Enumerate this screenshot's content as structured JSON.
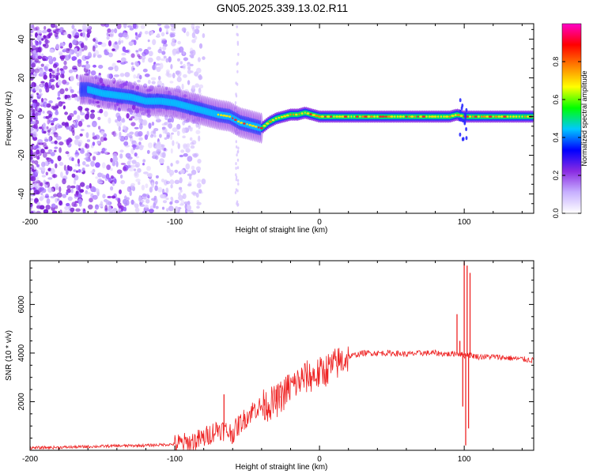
{
  "chart_data": [
    {
      "type": "heatmap",
      "title": "GN05.2025.339.13.02.R11",
      "xlabel": "Height of straight line (km)",
      "ylabel": "Frequency (Hz)",
      "xlim": [
        -200,
        148
      ],
      "ylim": [
        -50,
        48
      ],
      "xticks": [
        -200,
        -100,
        0,
        100
      ],
      "yticks": [
        -40,
        -20,
        0,
        20,
        40
      ],
      "xtick_labels": [
        "-200",
        "-100",
        "0",
        "100"
      ],
      "ytick_labels": [
        "-40",
        "-20",
        "0",
        "20",
        "40"
      ],
      "ridge": {
        "height_km": [
          -160,
          -150,
          -140,
          -130,
          -120,
          -110,
          -100,
          -90,
          -80,
          -70,
          -62,
          -55,
          -50,
          -45,
          -40,
          -35,
          -30,
          -25,
          -20,
          -15,
          -10,
          -5,
          0,
          10,
          50,
          90,
          95,
          100,
          110,
          148
        ],
        "frequency_hz": [
          14,
          12,
          11,
          10,
          8,
          8,
          7,
          5,
          3,
          1,
          0,
          -3,
          -4,
          -5,
          -6,
          -3,
          -1,
          0,
          1,
          1,
          2,
          1,
          0,
          0,
          0,
          0,
          1,
          0,
          0,
          0
        ]
      },
      "colorbar": {
        "label": "Normalized spectral amplitude",
        "range": [
          0.0,
          1.0
        ],
        "ticks": [
          0.0,
          0.2,
          0.4,
          0.6,
          0.8
        ],
        "tick_labels": [
          "0.0",
          "0.2",
          "0.4",
          "0.6",
          "0.8"
        ],
        "colors": [
          "#ffffff",
          "#c7b0ff",
          "#8a2be2",
          "#0000ff",
          "#00c8ff",
          "#00ff00",
          "#ffff00",
          "#ff8000",
          "#ff0000",
          "#ff00c8"
        ]
      }
    },
    {
      "type": "line",
      "xlabel": "Height of straight line (km)",
      "ylabel": "SNR (10 * v/v)",
      "xlim": [
        -200,
        148
      ],
      "ylim": [
        0,
        7800
      ],
      "xticks": [
        -200,
        -100,
        0,
        100
      ],
      "yticks": [
        2000,
        4000,
        6000
      ],
      "xtick_labels": [
        "-200",
        "-100",
        "0",
        "100"
      ],
      "ytick_labels": [
        "2000",
        "4000",
        "6000"
      ],
      "color": "#ee2222",
      "series": [
        {
          "name": "SNR",
          "x": [
            -200,
            -180,
            -160,
            -140,
            -120,
            -100,
            -90,
            -80,
            -75,
            -70,
            -65,
            -60,
            -55,
            -50,
            -45,
            -40,
            -35,
            -30,
            -25,
            -20,
            -15,
            -10,
            -5,
            0,
            10,
            20,
            30,
            40,
            50,
            60,
            70,
            80,
            90,
            95,
            98,
            100,
            102,
            105,
            110,
            120,
            130,
            140,
            148
          ],
          "y": [
            100,
            120,
            150,
            180,
            200,
            250,
            300,
            500,
            700,
            900,
            800,
            700,
            1100,
            1400,
            1700,
            1800,
            1900,
            2000,
            2300,
            2600,
            2800,
            3000,
            3050,
            3150,
            3500,
            3850,
            4000,
            4000,
            4000,
            3950,
            4000,
            4000,
            3950,
            4000,
            3950,
            3900,
            3950,
            3900,
            3850,
            3850,
            3800,
            3750,
            3700
          ]
        }
      ],
      "spikes": {
        "x": [
          -66,
          -38,
          -30,
          -27,
          -22,
          -17,
          -12,
          95,
          97,
          99,
          100,
          101,
          102,
          103,
          104
        ],
        "y": [
          2300,
          2100,
          2500,
          2200,
          3100,
          3050,
          3300,
          5600,
          4500,
          1800,
          7750,
          200,
          7600,
          900,
          7300
        ]
      }
    }
  ]
}
